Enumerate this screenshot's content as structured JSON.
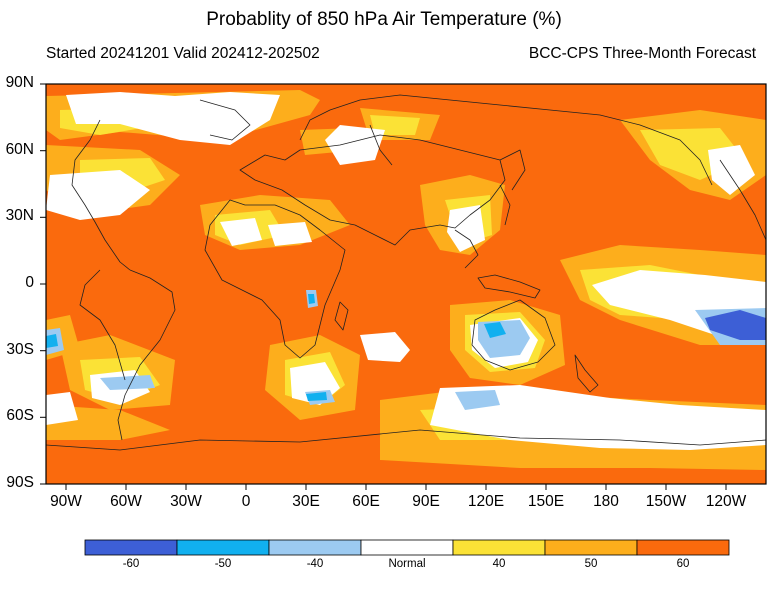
{
  "title": "Probablity of 850 hPa Air Temperature (%)",
  "subtitle_left": "Started 20241201  Valid 202412-202502",
  "subtitle_right": "BCC-CPS Three-Month Forecast",
  "lat_ticks": [
    "90N",
    "60N",
    "30N",
    "0",
    "30S",
    "60S",
    "90S"
  ],
  "lon_ticks": [
    "90W",
    "60W",
    "30W",
    "0",
    "30E",
    "60E",
    "90E",
    "120E",
    "150E",
    "180",
    "150W",
    "120W"
  ],
  "colorbar": {
    "labels": [
      "-60",
      "-50",
      "-40",
      "Normal",
      "40",
      "50",
      "60"
    ],
    "colors": [
      "#3d5fd6",
      "#11b0ef",
      "#9ccaf1",
      "#ffffff",
      "#fbe236",
      "#fdae1c",
      "#fa6a0d"
    ]
  },
  "map_colors": {
    "warm_60": "#fa6a0d",
    "warm_50": "#fdae1c",
    "warm_40": "#fbe236",
    "normal": "#ffffff",
    "cold_40": "#9ccaf1",
    "cold_50": "#11b0ef",
    "cold_60": "#3d5fd6",
    "coastline": "#222222"
  }
}
